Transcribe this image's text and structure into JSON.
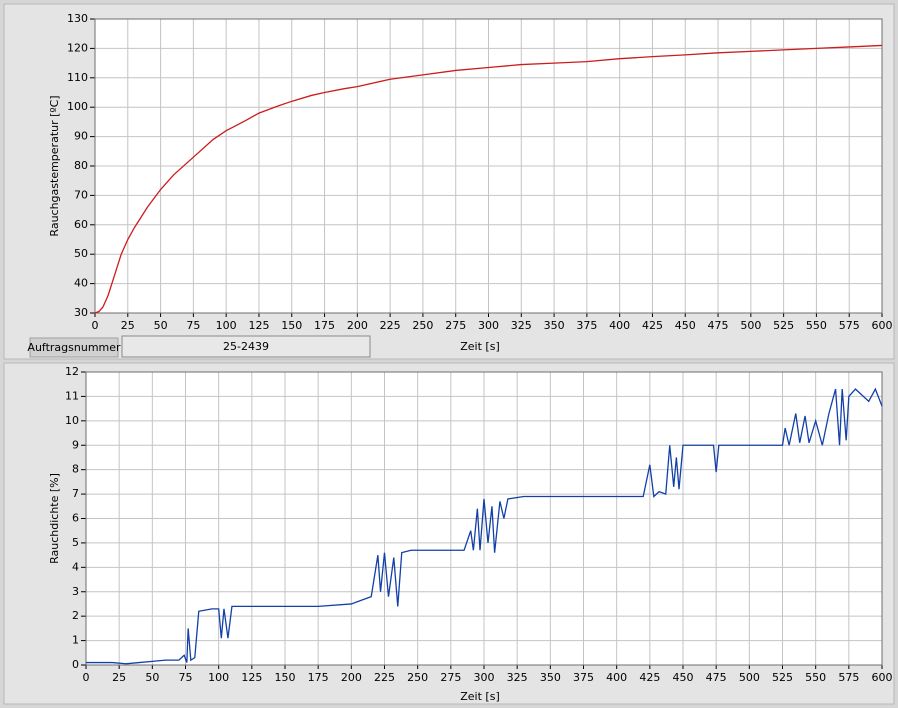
{
  "chart_data": [
    {
      "type": "line",
      "y_label": "Rauchgastemperatur [ºC]",
      "x_label": "Zeit [s]",
      "color": "#cc1c1c",
      "x": [
        0,
        3,
        6,
        10,
        15,
        20,
        25,
        30,
        40,
        50,
        60,
        75,
        90,
        100,
        115,
        125,
        140,
        150,
        165,
        175,
        190,
        200,
        225,
        250,
        275,
        300,
        325,
        350,
        375,
        400,
        425,
        450,
        475,
        500,
        525,
        550,
        575,
        600
      ],
      "values": [
        30,
        30.5,
        32,
        36,
        43,
        50,
        55,
        59,
        66,
        72,
        77,
        83,
        89,
        92,
        95.5,
        98,
        100.5,
        102,
        104,
        105,
        106.3,
        107,
        109.5,
        111,
        112.5,
        113.5,
        114.5,
        115,
        115.5,
        116.5,
        117.2,
        117.8,
        118.5,
        119,
        119.5,
        120,
        120.5,
        121
      ],
      "xlim": [
        0,
        600
      ],
      "xticks": [
        0,
        25,
        50,
        75,
        100,
        125,
        150,
        175,
        200,
        225,
        250,
        275,
        300,
        325,
        350,
        375,
        400,
        425,
        450,
        475,
        500,
        525,
        550,
        575,
        600
      ],
      "ylim": [
        30,
        130
      ],
      "yticks": [
        30,
        40,
        50,
        60,
        70,
        80,
        90,
        100,
        110,
        120,
        130
      ],
      "grid": true
    },
    {
      "type": "line",
      "y_label": "Rauchdichte [%]",
      "x_label": "Zeit [s]",
      "color": "#1240a8",
      "x": [
        0,
        10,
        20,
        30,
        40,
        50,
        60,
        70,
        74,
        76,
        77,
        79,
        82,
        85,
        95,
        100,
        102,
        104,
        107,
        110,
        125,
        150,
        175,
        200,
        205,
        215,
        220,
        222,
        225,
        228,
        232,
        235,
        238,
        245,
        270,
        285,
        290,
        292,
        295,
        297,
        300,
        303,
        306,
        308,
        312,
        315,
        318,
        330,
        360,
        400,
        420,
        425,
        428,
        432,
        437,
        440,
        443,
        445,
        447,
        450,
        473,
        475,
        477,
        525,
        527,
        530,
        535,
        538,
        542,
        545,
        550,
        555,
        560,
        565,
        568,
        570,
        573,
        575,
        580,
        590,
        595,
        600
      ],
      "values": [
        0.1,
        0.1,
        0.1,
        0.05,
        0.1,
        0.15,
        0.2,
        0.2,
        0.4,
        0.1,
        1.5,
        0.2,
        0.3,
        2.2,
        2.3,
        2.3,
        1.1,
        2.3,
        1.1,
        2.4,
        2.4,
        2.4,
        2.4,
        2.5,
        2.6,
        2.8,
        4.5,
        3,
        4.6,
        2.8,
        4.4,
        2.4,
        4.6,
        4.7,
        4.7,
        4.7,
        5.5,
        4.7,
        6.4,
        4.7,
        6.8,
        5,
        6.5,
        4.6,
        6.7,
        6,
        6.8,
        6.9,
        6.9,
        6.9,
        6.9,
        8.2,
        6.9,
        7.1,
        7,
        9,
        7.3,
        8.5,
        7.2,
        9,
        9,
        7.9,
        9,
        9,
        9.7,
        9,
        10.3,
        9.1,
        10.2,
        9.1,
        10,
        9,
        10.3,
        11.3,
        9,
        11.3,
        9.2,
        11,
        11.3,
        10.8,
        11.3,
        10.6
      ],
      "xlim": [
        0,
        600
      ],
      "xticks": [
        0,
        25,
        50,
        75,
        100,
        125,
        150,
        175,
        200,
        225,
        250,
        275,
        300,
        325,
        350,
        375,
        400,
        425,
        450,
        475,
        500,
        525,
        550,
        575,
        600
      ],
      "ylim": [
        0,
        12
      ],
      "yticks": [
        0,
        1,
        2,
        3,
        4,
        5,
        6,
        7,
        8,
        9,
        10,
        11,
        12
      ],
      "grid": true
    }
  ],
  "order_field": {
    "label": "Auftragsnummer",
    "value": "25-2439"
  }
}
